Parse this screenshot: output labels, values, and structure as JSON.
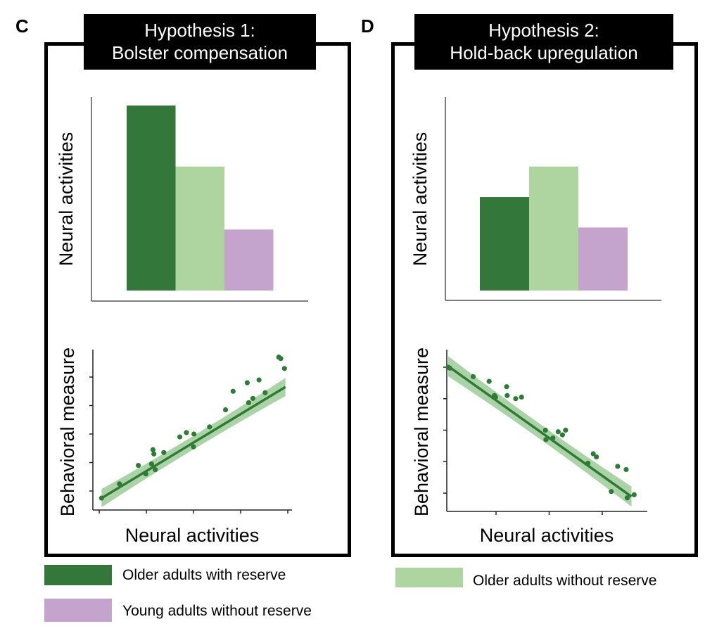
{
  "colors": {
    "older_with_reserve": "#33773a",
    "older_without_reserve": "#aed4a0",
    "young_without_reserve": "#c4a3cc",
    "fit_line": "#2f7a35",
    "fit_band": "#8fc48a"
  },
  "panels": [
    {
      "letter": "C",
      "title_line1": "Hypothesis 1:",
      "title_line2": "Bolster compensation"
    },
    {
      "letter": "D",
      "title_line1": "Hypothesis 2:",
      "title_line2": "Hold-back upregulation"
    }
  ],
  "legend": [
    {
      "label": "Older adults with reserve",
      "color_key": "older_with_reserve"
    },
    {
      "label": "Young adults without reserve",
      "color_key": "young_without_reserve"
    },
    {
      "label": "Older adults without reserve",
      "color_key": "older_without_reserve"
    }
  ],
  "chart_data": [
    {
      "id": "C-bar",
      "type": "bar",
      "title": "Hypothesis 1: Bolster compensation",
      "xlabel": "",
      "ylabel": "Neural activities",
      "categories": [
        "Older adults with reserve",
        "Older adults without reserve",
        "Young adults without reserve"
      ],
      "values": [
        0.91,
        0.61,
        0.3
      ],
      "ylim": [
        0,
        1
      ],
      "ticks": false
    },
    {
      "id": "C-scatter",
      "type": "scatter",
      "xlabel": "Neural activities",
      "ylabel": "Behavioral measure",
      "xlim": [
        0,
        4.2
      ],
      "ylim": [
        0,
        5.6
      ],
      "x_ticks": [
        0,
        1,
        2,
        3,
        4
      ],
      "y_ticks": [
        1,
        2,
        3,
        4,
        5
      ],
      "tick_labels": false,
      "fit": {
        "slope": 1.0,
        "intercept": 0.7,
        "x_range": [
          0.05,
          3.95
        ],
        "band": true
      },
      "points": [
        [
          0.05,
          0.75
        ],
        [
          0.43,
          1.25
        ],
        [
          0.83,
          1.9
        ],
        [
          0.99,
          1.6
        ],
        [
          1.11,
          1.95
        ],
        [
          1.14,
          2.45
        ],
        [
          1.16,
          2.3
        ],
        [
          1.19,
          1.75
        ],
        [
          1.37,
          2.35
        ],
        [
          1.71,
          2.9
        ],
        [
          1.85,
          3.05
        ],
        [
          2.0,
          2.55
        ],
        [
          2.01,
          3.0
        ],
        [
          2.34,
          3.25
        ],
        [
          2.68,
          3.85
        ],
        [
          2.84,
          4.5
        ],
        [
          3.14,
          4.8
        ],
        [
          3.17,
          4.1
        ],
        [
          3.26,
          4.25
        ],
        [
          3.39,
          4.9
        ],
        [
          3.52,
          4.45
        ],
        [
          3.81,
          5.7
        ],
        [
          3.85,
          5.65
        ],
        [
          3.93,
          5.3
        ]
      ]
    },
    {
      "id": "D-bar",
      "type": "bar",
      "title": "Hypothesis 2: Hold-back upregulation",
      "xlabel": "",
      "ylabel": "Neural activities",
      "categories": [
        "Older adults with reserve",
        "Older adults without reserve",
        "Young adults without reserve"
      ],
      "values": [
        0.46,
        0.61,
        0.31
      ],
      "ylim": [
        0,
        1
      ],
      "ticks": false
    },
    {
      "id": "D-scatter",
      "type": "scatter",
      "xlabel": "Neural activities",
      "ylabel": "Behavioral measure",
      "xlim": [
        0,
        3.7
      ],
      "ylim": [
        0,
        5.6
      ],
      "x_ticks": [
        1,
        2,
        3
      ],
      "y_ticks": [
        1,
        2,
        3,
        4,
        5
      ],
      "tick_labels": false,
      "fit": {
        "slope": -1.2,
        "intercept": 5.15,
        "x_range": [
          0.1,
          3.55
        ],
        "band": true
      },
      "points": [
        [
          0.1,
          5.0
        ],
        [
          0.13,
          4.97
        ],
        [
          0.57,
          4.7
        ],
        [
          0.87,
          4.55
        ],
        [
          0.97,
          4.1
        ],
        [
          0.99,
          4.05
        ],
        [
          1.2,
          4.38
        ],
        [
          1.21,
          4.1
        ],
        [
          1.37,
          4.0
        ],
        [
          1.48,
          4.05
        ],
        [
          1.93,
          3.0
        ],
        [
          1.94,
          2.7
        ],
        [
          2.07,
          2.75
        ],
        [
          2.17,
          2.95
        ],
        [
          2.25,
          2.85
        ],
        [
          2.31,
          3.0
        ],
        [
          2.73,
          1.95
        ],
        [
          2.83,
          2.25
        ],
        [
          2.89,
          2.15
        ],
        [
          3.17,
          1.05
        ],
        [
          3.29,
          1.85
        ],
        [
          3.45,
          1.75
        ],
        [
          3.47,
          0.85
        ],
        [
          3.6,
          0.95
        ]
      ]
    }
  ]
}
